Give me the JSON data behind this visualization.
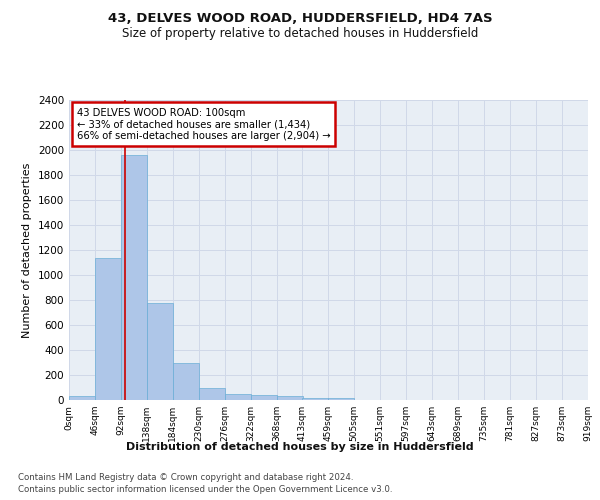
{
  "title": "43, DELVES WOOD ROAD, HUDDERSFIELD, HD4 7AS",
  "subtitle": "Size of property relative to detached houses in Huddersfield",
  "xlabel": "Distribution of detached houses by size in Huddersfield",
  "ylabel": "Number of detached properties",
  "footer_line1": "Contains HM Land Registry data © Crown copyright and database right 2024.",
  "footer_line2": "Contains public sector information licensed under the Open Government Licence v3.0.",
  "bar_values": [
    35,
    1140,
    1960,
    775,
    300,
    100,
    48,
    40,
    30,
    20,
    18,
    0,
    0,
    0,
    0,
    0,
    0,
    0,
    0,
    0
  ],
  "bin_edges": [
    0,
    46,
    92,
    138,
    184,
    230,
    276,
    322,
    368,
    413,
    459,
    505,
    551,
    597,
    643,
    689,
    735,
    781,
    827,
    873,
    919
  ],
  "x_tick_labels": [
    "0sqm",
    "46sqm",
    "92sqm",
    "138sqm",
    "184sqm",
    "230sqm",
    "276sqm",
    "322sqm",
    "368sqm",
    "413sqm",
    "459sqm",
    "505sqm",
    "551sqm",
    "597sqm",
    "643sqm",
    "689sqm",
    "735sqm",
    "781sqm",
    "827sqm",
    "873sqm",
    "919sqm"
  ],
  "ylim": [
    0,
    2400
  ],
  "yticks": [
    0,
    200,
    400,
    600,
    800,
    1000,
    1200,
    1400,
    1600,
    1800,
    2000,
    2200,
    2400
  ],
  "bar_color": "#aec6e8",
  "bar_edge_color": "#6aaed6",
  "grid_color": "#d0d8e8",
  "property_line_x": 100,
  "annotation_text_line1": "43 DELVES WOOD ROAD: 100sqm",
  "annotation_text_line2": "← 33% of detached houses are smaller (1,434)",
  "annotation_text_line3": "66% of semi-detached houses are larger (2,904) →",
  "annotation_box_color": "#cc0000",
  "bg_color": "#e8eef5",
  "fig_bg_color": "#ffffff"
}
